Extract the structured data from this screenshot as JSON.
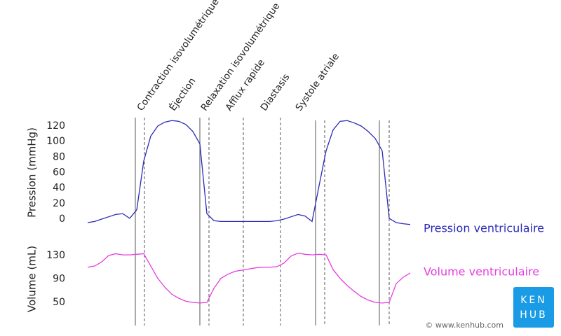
{
  "chart_data": [
    {
      "type": "line",
      "ylabel": "Pression (mmHg)",
      "annotations": [
        "Contraction isovolumétrique",
        "Éjection",
        "Relaxation isovolumétrique",
        "Afflux rapide",
        "Diastasis",
        "Systole atriale"
      ],
      "ylim": [
        -10,
        130
      ],
      "yticks": [
        0,
        20,
        40,
        60,
        80,
        100,
        120
      ],
      "series": [
        {
          "name": "Pression ventriculaire",
          "color": "#2a2ab8",
          "values": [
            -4.5,
            -3,
            0,
            3,
            6,
            7,
            1,
            12,
            75,
            107,
            120,
            125,
            127,
            126,
            122,
            113,
            97,
            7,
            -2,
            -3,
            -3,
            -3,
            -3,
            -3,
            -3,
            -3,
            -3,
            -2,
            0,
            3,
            6,
            4,
            -3,
            43,
            88,
            115,
            126,
            127,
            124,
            120,
            113,
            104,
            88,
            1,
            -4.5,
            -6,
            -7
          ]
        }
      ]
    },
    {
      "type": "line",
      "ylabel": "Volume (mL)",
      "ylim": [
        40,
        140
      ],
      "yticks": [
        50,
        90,
        130
      ],
      "series": [
        {
          "name": "Volume ventriculaire",
          "color": "#e53de0",
          "values": [
            110,
            112,
            119,
            130,
            133,
            131,
            131,
            132,
            133,
            112,
            91,
            76,
            64,
            57,
            52,
            50,
            49,
            50,
            74,
            91,
            98,
            103,
            105,
            107,
            109,
            110,
            110,
            111,
            117,
            129,
            134,
            132,
            131,
            132,
            131,
            106,
            91,
            79,
            69,
            60,
            54,
            50,
            49,
            50,
            82,
            93,
            100
          ]
        }
      ]
    }
  ],
  "footer": {
    "credit": "© www.kenhub.com",
    "logo": [
      "KEN",
      "HUB"
    ]
  }
}
